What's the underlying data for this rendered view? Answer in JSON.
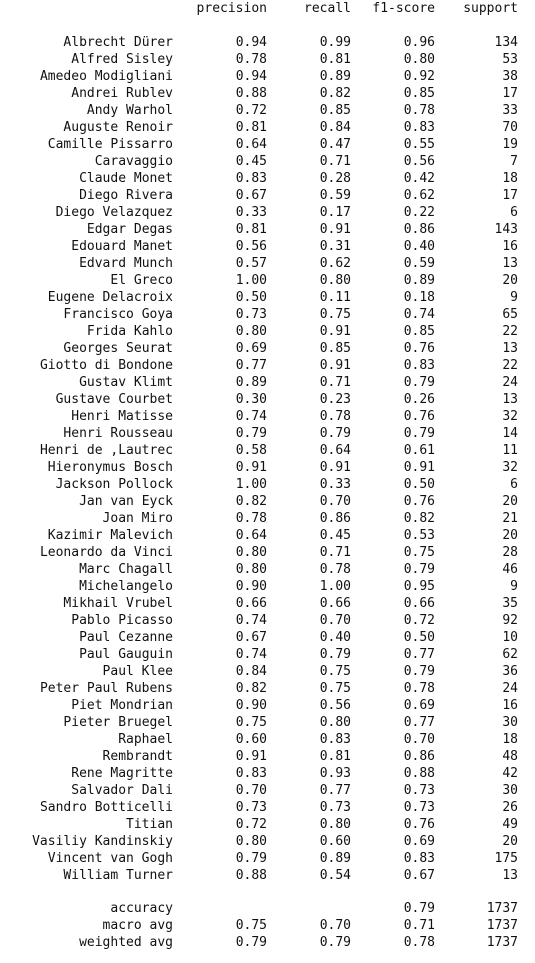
{
  "report": {
    "headers": [
      "precision",
      "recall",
      "f1-score",
      "support"
    ],
    "rows": [
      {
        "label": "Albrecht Dürer",
        "precision": "0.94",
        "recall": "0.99",
        "f1": "0.96",
        "support": "134"
      },
      {
        "label": "Alfred Sisley",
        "precision": "0.78",
        "recall": "0.81",
        "f1": "0.80",
        "support": "53"
      },
      {
        "label": "Amedeo Modigliani",
        "precision": "0.94",
        "recall": "0.89",
        "f1": "0.92",
        "support": "38"
      },
      {
        "label": "Andrei Rublev",
        "precision": "0.88",
        "recall": "0.82",
        "f1": "0.85",
        "support": "17"
      },
      {
        "label": "Andy Warhol",
        "precision": "0.72",
        "recall": "0.85",
        "f1": "0.78",
        "support": "33"
      },
      {
        "label": "Auguste Renoir",
        "precision": "0.81",
        "recall": "0.84",
        "f1": "0.83",
        "support": "70"
      },
      {
        "label": "Camille Pissarro",
        "precision": "0.64",
        "recall": "0.47",
        "f1": "0.55",
        "support": "19"
      },
      {
        "label": "Caravaggio",
        "precision": "0.45",
        "recall": "0.71",
        "f1": "0.56",
        "support": "7"
      },
      {
        "label": "Claude Monet",
        "precision": "0.83",
        "recall": "0.28",
        "f1": "0.42",
        "support": "18"
      },
      {
        "label": "Diego Rivera",
        "precision": "0.67",
        "recall": "0.59",
        "f1": "0.62",
        "support": "17"
      },
      {
        "label": "Diego Velazquez",
        "precision": "0.33",
        "recall": "0.17",
        "f1": "0.22",
        "support": "6"
      },
      {
        "label": "Edgar Degas",
        "precision": "0.81",
        "recall": "0.91",
        "f1": "0.86",
        "support": "143"
      },
      {
        "label": "Edouard Manet",
        "precision": "0.56",
        "recall": "0.31",
        "f1": "0.40",
        "support": "16"
      },
      {
        "label": "Edvard Munch",
        "precision": "0.57",
        "recall": "0.62",
        "f1": "0.59",
        "support": "13"
      },
      {
        "label": "El Greco",
        "precision": "1.00",
        "recall": "0.80",
        "f1": "0.89",
        "support": "20"
      },
      {
        "label": "Eugene Delacroix",
        "precision": "0.50",
        "recall": "0.11",
        "f1": "0.18",
        "support": "9"
      },
      {
        "label": "Francisco Goya",
        "precision": "0.73",
        "recall": "0.75",
        "f1": "0.74",
        "support": "65"
      },
      {
        "label": "Frida Kahlo",
        "precision": "0.80",
        "recall": "0.91",
        "f1": "0.85",
        "support": "22"
      },
      {
        "label": "Georges Seurat",
        "precision": "0.69",
        "recall": "0.85",
        "f1": "0.76",
        "support": "13"
      },
      {
        "label": "Giotto di Bondone",
        "precision": "0.77",
        "recall": "0.91",
        "f1": "0.83",
        "support": "22"
      },
      {
        "label": "Gustav Klimt",
        "precision": "0.89",
        "recall": "0.71",
        "f1": "0.79",
        "support": "24"
      },
      {
        "label": "Gustave Courbet",
        "precision": "0.30",
        "recall": "0.23",
        "f1": "0.26",
        "support": "13"
      },
      {
        "label": "Henri Matisse",
        "precision": "0.74",
        "recall": "0.78",
        "f1": "0.76",
        "support": "32"
      },
      {
        "label": "Henri Rousseau",
        "precision": "0.79",
        "recall": "0.79",
        "f1": "0.79",
        "support": "14"
      },
      {
        "label": "Henri de ,Lautrec",
        "precision": "0.58",
        "recall": "0.64",
        "f1": "0.61",
        "support": "11"
      },
      {
        "label": "Hieronymus Bosch",
        "precision": "0.91",
        "recall": "0.91",
        "f1": "0.91",
        "support": "32"
      },
      {
        "label": "Jackson Pollock",
        "precision": "1.00",
        "recall": "0.33",
        "f1": "0.50",
        "support": "6"
      },
      {
        "label": "Jan van Eyck",
        "precision": "0.82",
        "recall": "0.70",
        "f1": "0.76",
        "support": "20"
      },
      {
        "label": "Joan Miro",
        "precision": "0.78",
        "recall": "0.86",
        "f1": "0.82",
        "support": "21"
      },
      {
        "label": "Kazimir Malevich",
        "precision": "0.64",
        "recall": "0.45",
        "f1": "0.53",
        "support": "20"
      },
      {
        "label": "Leonardo da Vinci",
        "precision": "0.80",
        "recall": "0.71",
        "f1": "0.75",
        "support": "28"
      },
      {
        "label": "Marc Chagall",
        "precision": "0.80",
        "recall": "0.78",
        "f1": "0.79",
        "support": "46"
      },
      {
        "label": "Michelangelo",
        "precision": "0.90",
        "recall": "1.00",
        "f1": "0.95",
        "support": "9"
      },
      {
        "label": "Mikhail Vrubel",
        "precision": "0.66",
        "recall": "0.66",
        "f1": "0.66",
        "support": "35"
      },
      {
        "label": "Pablo Picasso",
        "precision": "0.74",
        "recall": "0.70",
        "f1": "0.72",
        "support": "92"
      },
      {
        "label": "Paul Cezanne",
        "precision": "0.67",
        "recall": "0.40",
        "f1": "0.50",
        "support": "10"
      },
      {
        "label": "Paul Gauguin",
        "precision": "0.74",
        "recall": "0.79",
        "f1": "0.77",
        "support": "62"
      },
      {
        "label": "Paul Klee",
        "precision": "0.84",
        "recall": "0.75",
        "f1": "0.79",
        "support": "36"
      },
      {
        "label": "Peter Paul Rubens",
        "precision": "0.82",
        "recall": "0.75",
        "f1": "0.78",
        "support": "24"
      },
      {
        "label": "Piet Mondrian",
        "precision": "0.90",
        "recall": "0.56",
        "f1": "0.69",
        "support": "16"
      },
      {
        "label": "Pieter Bruegel",
        "precision": "0.75",
        "recall": "0.80",
        "f1": "0.77",
        "support": "30"
      },
      {
        "label": "Raphael",
        "precision": "0.60",
        "recall": "0.83",
        "f1": "0.70",
        "support": "18"
      },
      {
        "label": "Rembrandt",
        "precision": "0.91",
        "recall": "0.81",
        "f1": "0.86",
        "support": "48"
      },
      {
        "label": "Rene Magritte",
        "precision": "0.83",
        "recall": "0.93",
        "f1": "0.88",
        "support": "42"
      },
      {
        "label": "Salvador Dali",
        "precision": "0.70",
        "recall": "0.77",
        "f1": "0.73",
        "support": "30"
      },
      {
        "label": "Sandro Botticelli",
        "precision": "0.73",
        "recall": "0.73",
        "f1": "0.73",
        "support": "26"
      },
      {
        "label": "Titian",
        "precision": "0.72",
        "recall": "0.80",
        "f1": "0.76",
        "support": "49"
      },
      {
        "label": "Vasiliy Kandinskiy",
        "precision": "0.80",
        "recall": "0.60",
        "f1": "0.69",
        "support": "20"
      },
      {
        "label": "Vincent van Gogh",
        "precision": "0.79",
        "recall": "0.89",
        "f1": "0.83",
        "support": "175"
      },
      {
        "label": "William Turner",
        "precision": "0.88",
        "recall": "0.54",
        "f1": "0.67",
        "support": "13"
      }
    ],
    "summary": [
      {
        "label": "accuracy",
        "precision": "",
        "recall": "",
        "f1": "0.79",
        "support": "1737"
      },
      {
        "label": "macro avg",
        "precision": "0.75",
        "recall": "0.70",
        "f1": "0.71",
        "support": "1737"
      },
      {
        "label": "weighted avg",
        "precision": "0.79",
        "recall": "0.79",
        "f1": "0.78",
        "support": "1737"
      }
    ]
  }
}
